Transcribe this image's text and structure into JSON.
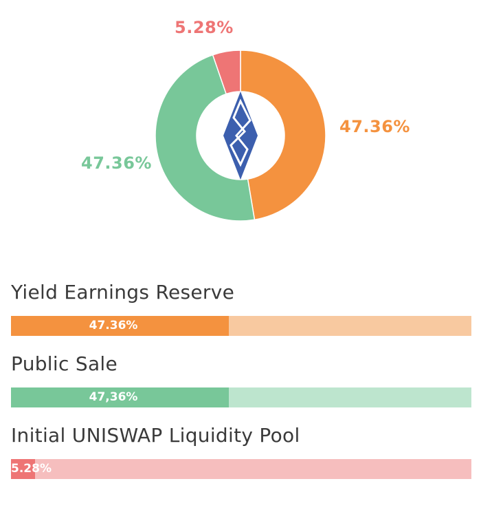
{
  "chart_data": [
    {
      "type": "pie",
      "style": "donut",
      "center_icon": "blue-diamond-logo-icon",
      "slices": [
        {
          "label": "47.36%",
          "value": 47.36,
          "color": "#F4923F"
        },
        {
          "label": "47.36%",
          "value": 47.36,
          "color": "#78C799"
        },
        {
          "label": "5.28%",
          "value": 5.28,
          "color": "#EE7575"
        }
      ]
    },
    {
      "type": "bar",
      "orientation": "horizontal",
      "bars": [
        {
          "category": "Yield Earnings Reserve",
          "value": 47.36,
          "label": "47.36%",
          "fill_color": "#F4923F",
          "track_color": "#F8C9A0"
        },
        {
          "category": "Public Sale",
          "value": 47.36,
          "label": "47,36%",
          "fill_color": "#78C799",
          "track_color": "#BDE5CE"
        },
        {
          "category": "Initial UNISWAP Liquidity Pool",
          "value": 5.28,
          "label": "5.28%",
          "fill_color": "#EE7575",
          "track_color": "#F6BEBE"
        }
      ],
      "xlim": [
        0,
        100
      ]
    }
  ]
}
